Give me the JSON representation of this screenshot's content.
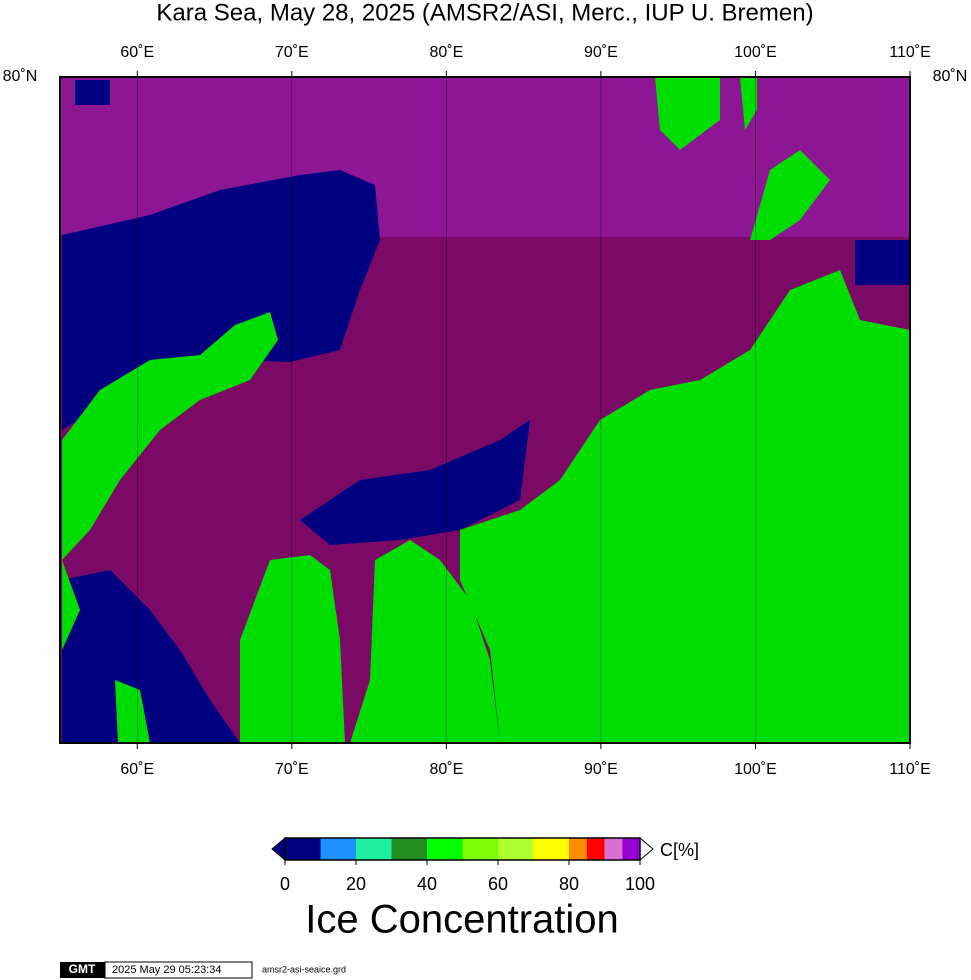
{
  "title": "Kara Sea, May 28, 2025 (AMSR2/ASI, Merc., IUP U. Bremen)",
  "map": {
    "lon_range": [
      55,
      110
    ],
    "lon_ticks": [
      {
        "value": 60,
        "label": "60˚E"
      },
      {
        "value": 70,
        "label": "70˚E"
      },
      {
        "value": 80,
        "label": "80˚E"
      },
      {
        "value": 90,
        "label": "90˚E"
      },
      {
        "value": 100,
        "label": "100˚E"
      },
      {
        "value": 110,
        "label": "110˚E"
      }
    ],
    "lat_label": "80˚N"
  },
  "colorbar": {
    "bins": [
      0,
      10,
      20,
      30,
      40,
      50,
      60,
      70,
      80,
      85,
      90,
      95,
      100
    ],
    "colors": [
      "#000080",
      "#1e90ff",
      "#20f0a0",
      "#228b22",
      "#00ff00",
      "#7cfc00",
      "#adff2f",
      "#ffff00",
      "#ff8c00",
      "#ff0000",
      "#da70d6",
      "#9400d3"
    ],
    "ticks": [
      0,
      20,
      40,
      60,
      80,
      100
    ],
    "unit": "C[%]",
    "label": "Ice Concentration"
  },
  "footer": {
    "logo": "GMT",
    "timestamp": "2025 May 29 05:23:34",
    "file": "amsr2-asi-seaice.grd"
  }
}
